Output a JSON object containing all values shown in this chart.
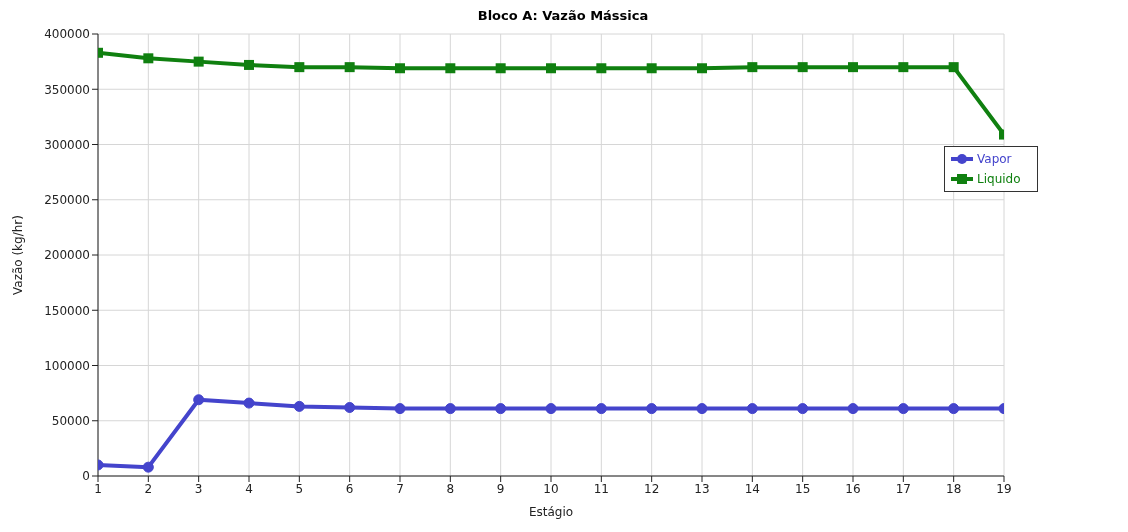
{
  "chart_data": {
    "type": "line",
    "title": "Bloco A: Vazão Mássica",
    "xlabel": "Estágio",
    "ylabel": "Vazão (kg/hr)",
    "x": [
      1,
      2,
      3,
      4,
      5,
      6,
      7,
      8,
      9,
      10,
      11,
      12,
      13,
      14,
      15,
      16,
      17,
      18,
      19
    ],
    "series": [
      {
        "name": "Vapor",
        "color": "#4444cc",
        "marker": "circle",
        "values": [
          10000,
          8000,
          69000,
          66000,
          63000,
          62000,
          61000,
          61000,
          61000,
          61000,
          61000,
          61000,
          61000,
          61000,
          61000,
          61000,
          61000,
          61000,
          61000
        ]
      },
      {
        "name": "Liquido",
        "color": "#108010",
        "marker": "square",
        "values": [
          383000,
          378000,
          375000,
          372000,
          370000,
          370000,
          369000,
          369000,
          369000,
          369000,
          369000,
          369000,
          369000,
          370000,
          370000,
          370000,
          370000,
          370000,
          309000
        ]
      }
    ],
    "xlim": [
      1,
      19
    ],
    "xticks": [
      1,
      2,
      3,
      4,
      5,
      6,
      7,
      8,
      9,
      10,
      11,
      12,
      13,
      14,
      15,
      16,
      17,
      18,
      19
    ],
    "ylim": [
      0,
      400000
    ],
    "yticks": [
      0,
      50000,
      100000,
      150000,
      200000,
      250000,
      300000,
      350000,
      400000
    ],
    "grid": true,
    "legend": "right"
  }
}
